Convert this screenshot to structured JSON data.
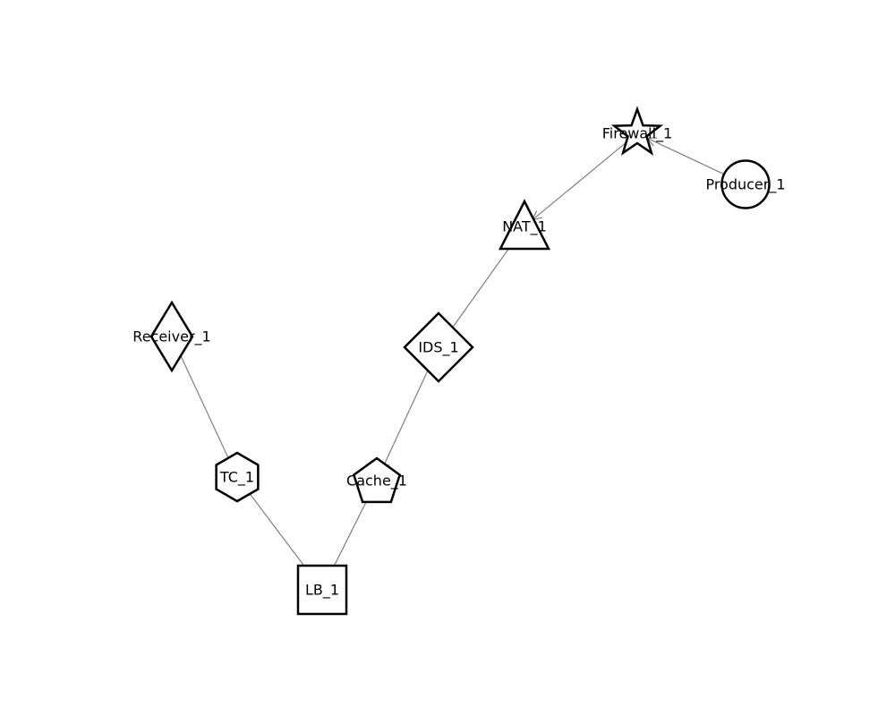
{
  "diagram": {
    "colors": {
      "node_stroke": "#000000",
      "node_fill": "#ffffff",
      "edge": "#808080",
      "text": "#000000"
    },
    "nodes": [
      {
        "id": "Firewall_1",
        "label": "Firewall_1",
        "shape": "star"
      },
      {
        "id": "Producer_1",
        "label": "Producer_1",
        "shape": "circle"
      },
      {
        "id": "NAT_1",
        "label": "NAT_1",
        "shape": "triangle"
      },
      {
        "id": "IDS_1",
        "label": "IDS_1",
        "shape": "diamond"
      },
      {
        "id": "Receiver_1",
        "label": "Receiver_1",
        "shape": "thin-diamond"
      },
      {
        "id": "TC_1",
        "label": "TC_1",
        "shape": "hexagon"
      },
      {
        "id": "Cache_1",
        "label": "Cache_1",
        "shape": "pentagon"
      },
      {
        "id": "LB_1",
        "label": "LB_1",
        "shape": "square"
      }
    ],
    "edges": [
      {
        "from": "Producer_1",
        "to": "Firewall_1",
        "directed": true
      },
      {
        "from": "Firewall_1",
        "to": "NAT_1",
        "directed": true
      },
      {
        "from": "NAT_1",
        "to": "IDS_1",
        "directed": false
      },
      {
        "from": "IDS_1",
        "to": "Cache_1",
        "directed": true
      },
      {
        "from": "Cache_1",
        "to": "LB_1",
        "directed": false
      },
      {
        "from": "LB_1",
        "to": "TC_1",
        "directed": false
      },
      {
        "from": "TC_1",
        "to": "Receiver_1",
        "directed": false
      }
    ]
  }
}
